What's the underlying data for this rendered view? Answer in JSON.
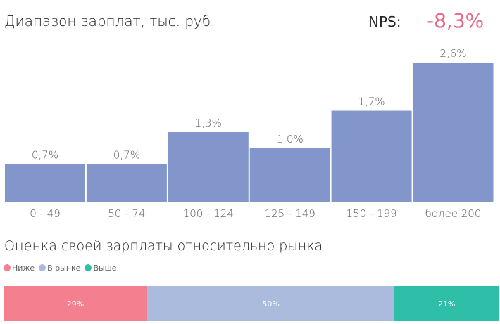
{
  "chart_data": [
    {
      "type": "bar",
      "title": "Диапазон зарплат, тыс. руб.",
      "categories": [
        "0 - 49",
        "50 - 74",
        "100 - 124",
        "125 - 149",
        "150 - 199",
        "более 200"
      ],
      "values": [
        0.7,
        0.7,
        1.3,
        1.0,
        1.7,
        2.6
      ],
      "labels": [
        "0,7%",
        "0,7%",
        "1,3%",
        "1,0%",
        "1,7%",
        "2,6%"
      ],
      "color": "#8396CC",
      "ylim": [
        0,
        2.6
      ],
      "grid": false
    },
    {
      "type": "bar",
      "stacked": true,
      "orientation": "horizontal",
      "title": "Оценка своей зарплаты относительно рынка",
      "series": [
        {
          "name": "Ниже",
          "value": 29,
          "label": "29%",
          "color": "#F4808F"
        },
        {
          "name": "В рынке",
          "value": 50,
          "label": "50%",
          "color": "#AABBDD"
        },
        {
          "name": "Выше",
          "value": 21,
          "label": "21%",
          "color": "#2FBFA8"
        }
      ],
      "legend": "top-left"
    }
  ],
  "nps": {
    "label": "NPS:",
    "value": "-8,3%",
    "color": "#E8698A"
  }
}
